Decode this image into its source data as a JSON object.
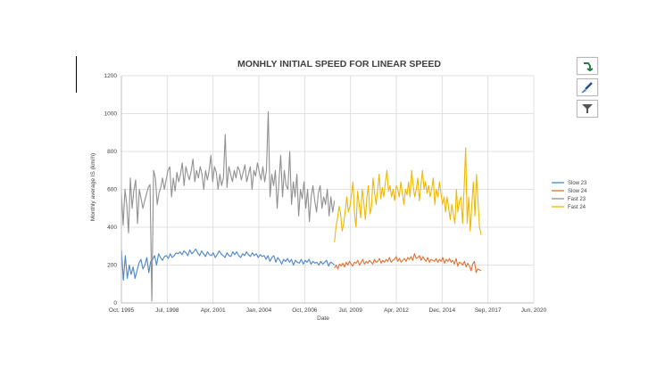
{
  "chart_data": {
    "type": "line",
    "title": "MONHLY INITIAL SPEED  FOR LINEAR SPEED",
    "xlabel": "Date",
    "ylabel": "Monthly average IS (km/h)",
    "ylim": [
      0,
      1200
    ],
    "yticks": [
      "0",
      "200",
      "400",
      "600",
      "800",
      "1000",
      "1200"
    ],
    "yticks_values": [
      0,
      200,
      400,
      600,
      800,
      1000,
      1200
    ],
    "xticks": [
      "Oct, 1995",
      "Jul, 1998",
      "Apr, 2001",
      "Jan, 2004",
      "Oct, 2006",
      "Jul, 2009",
      "Apr, 2012",
      "Dec, 2014",
      "Sep, 2017",
      "Jun, 2020"
    ],
    "grid": true,
    "legend_position": "right",
    "series": [
      {
        "name": "Slow 23",
        "color": "#4a86c8",
        "values": [
          285,
          120,
          250,
          130,
          200,
          150,
          190,
          130,
          170,
          210,
          230,
          180,
          200,
          240,
          160,
          220,
          230,
          250,
          200,
          260,
          240,
          225,
          245,
          250,
          235,
          260,
          240,
          250,
          265,
          260,
          270,
          255,
          275,
          265,
          250,
          280,
          260,
          270,
          285,
          265,
          250,
          275,
          260,
          245,
          270,
          255,
          250,
          265,
          240,
          255,
          275,
          260,
          250,
          240,
          265,
          250,
          245,
          270,
          255,
          270,
          250,
          240,
          260,
          250,
          270,
          255,
          245,
          265,
          250,
          260,
          240,
          255,
          245,
          250,
          230,
          250,
          220,
          240,
          250,
          215,
          240,
          225,
          205,
          230,
          220,
          235,
          215,
          230,
          200,
          225,
          215,
          210,
          230,
          205,
          225,
          215,
          230,
          205,
          220,
          210,
          215,
          200,
          220,
          205,
          215,
          225,
          195,
          215,
          210,
          200
        ]
      },
      {
        "name": "Slow 24",
        "color": "#e07030",
        "values": [
          185,
          200,
          180,
          205,
          195,
          210,
          190,
          215,
          200,
          220,
          205,
          195,
          215,
          210,
          225,
          200,
          215,
          230,
          205,
          220,
          210,
          225,
          215,
          205,
          230,
          215,
          220,
          235,
          210,
          225,
          215,
          230,
          220,
          240,
          215,
          225,
          230,
          245,
          220,
          235,
          215,
          225,
          235,
          220,
          240,
          230,
          245,
          225,
          260,
          235,
          240,
          250,
          225,
          245,
          230,
          220,
          240,
          215,
          230,
          225,
          220,
          235,
          215,
          230,
          220,
          240,
          210,
          230,
          220,
          235,
          215,
          225,
          205,
          235,
          195,
          215,
          210,
          200,
          220,
          190,
          210,
          195,
          170,
          205,
          220,
          160,
          180,
          175,
          170
        ]
      },
      {
        "name": "Fast 23",
        "color": "#909090",
        "values": [
          585,
          410,
          600,
          520,
          370,
          660,
          500,
          595,
          650,
          420,
          600,
          550,
          500,
          540,
          575,
          610,
          625,
          10,
          700,
          660,
          520,
          580,
          610,
          660,
          600,
          650,
          700,
          720,
          560,
          660,
          590,
          690,
          640,
          680,
          740,
          620,
          720,
          680,
          650,
          700,
          760,
          640,
          700,
          660,
          720,
          680,
          600,
          700,
          650,
          700,
          780,
          640,
          720,
          690,
          600,
          680,
          620,
          660,
          890,
          610,
          720,
          680,
          640,
          700,
          660,
          720,
          700,
          650,
          690,
          730,
          640,
          680,
          720,
          600,
          700,
          670,
          740,
          690,
          650,
          720,
          640,
          700,
          1010,
          560,
          680,
          620,
          700,
          500,
          640,
          780,
          560,
          700,
          620,
          600,
          800,
          520,
          640,
          560,
          680,
          460,
          600,
          550,
          640,
          500,
          600,
          430,
          560,
          620,
          540,
          480,
          580,
          620,
          500,
          560,
          520,
          600,
          460,
          560,
          480,
          540
        ]
      },
      {
        "name": "Fast 24",
        "color": "#f0b800",
        "values": [
          320,
          400,
          450,
          510,
          470,
          380,
          420,
          490,
          560,
          480,
          510,
          570,
          640,
          470,
          400,
          590,
          520,
          450,
          600,
          530,
          440,
          560,
          620,
          470,
          510,
          660,
          580,
          520,
          600,
          680,
          550,
          610,
          560,
          640,
          700,
          590,
          620,
          560,
          600,
          540,
          620,
          600,
          560,
          640,
          580,
          520,
          600,
          570,
          640,
          560,
          700,
          620,
          560,
          600,
          660,
          540,
          620,
          700,
          600,
          640,
          580,
          620,
          560,
          600,
          660,
          520,
          600,
          560,
          640,
          580,
          520,
          560,
          480,
          560,
          500,
          440,
          520,
          470,
          420,
          600,
          480,
          540,
          560,
          420,
          600,
          820,
          420,
          560,
          380,
          520,
          640,
          460,
          680,
          540,
          400,
          360
        ]
      }
    ]
  },
  "toolbar": [
    {
      "name": "chart-elements-icon"
    },
    {
      "name": "chart-styles-icon"
    },
    {
      "name": "chart-filters-icon"
    }
  ]
}
